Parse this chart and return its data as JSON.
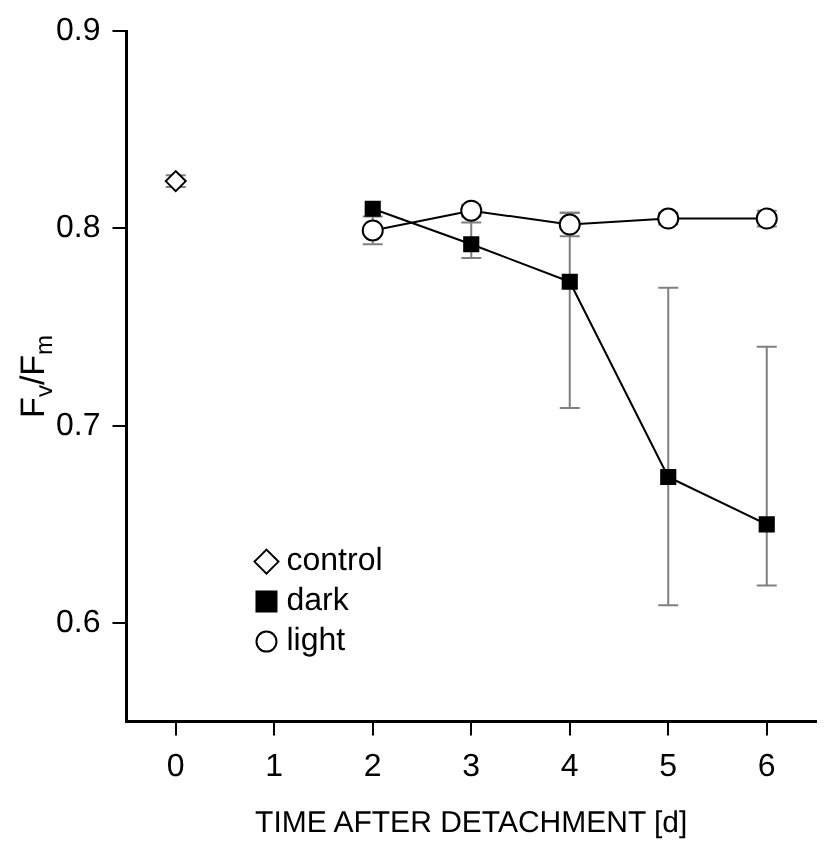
{
  "chart_data": {
    "type": "line",
    "xlabel": "TIME AFTER DETACHMENT [d]",
    "ylabel": "F$_{v}$/F$_{m}$",
    "xlim": [
      -0.5,
      6.5
    ],
    "xticks": [
      0,
      1,
      2,
      3,
      4,
      5,
      6
    ],
    "ylim": [
      0.55,
      0.9
    ],
    "yticks": [
      0.6,
      0.7,
      0.8,
      0.9
    ],
    "grid": false,
    "legend": "bottom left",
    "series": [
      {
        "name": "control",
        "type": "scatter",
        "marker": "diamond",
        "color": "#000000",
        "x": [
          0
        ],
        "values": [
          0.824
        ],
        "errors": [
          0.003
        ]
      },
      {
        "name": "dark",
        "marker": "square",
        "color": "#000000",
        "x": [
          2,
          3,
          4,
          5,
          6
        ],
        "values": [
          0.81,
          0.792,
          0.773,
          0.674,
          0.65
        ],
        "errors": [
          null,
          [
            0.785,
            0.803
          ],
          [
            0.709,
            0.808
          ],
          [
            0.609,
            0.77
          ],
          [
            0.619,
            0.74
          ]
        ]
      },
      {
        "name": "light",
        "marker": "circle",
        "color": "#000000",
        "x": [
          2,
          3,
          4,
          5,
          6
        ],
        "values": [
          0.799,
          0.809,
          0.802,
          0.805,
          0.805
        ],
        "errors": [
          0.007,
          0.003,
          0.006,
          0.003,
          0.004
        ]
      }
    ]
  }
}
